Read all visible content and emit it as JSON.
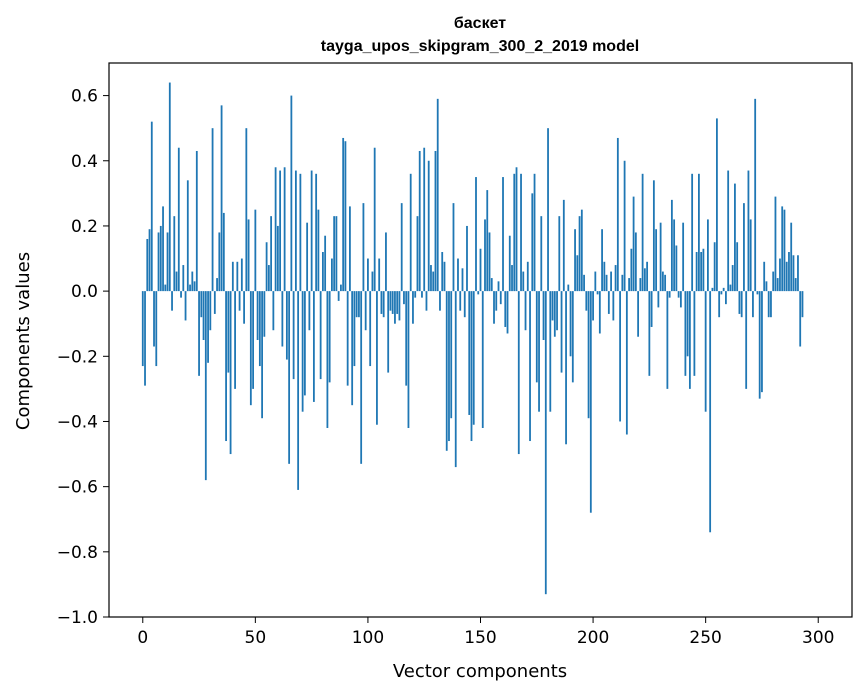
{
  "chart_data": {
    "type": "bar",
    "title": "баскет",
    "subtitle": "tayga_upos_skipgram_300_2_2019 model",
    "xlabel": "Vector components",
    "ylabel": "Components values",
    "xlim": [
      -15,
      315
    ],
    "ylim": [
      -1.0,
      0.7
    ],
    "x_ticks": [
      0,
      50,
      100,
      150,
      200,
      250,
      300
    ],
    "x_tick_labels": [
      "0",
      "50",
      "100",
      "150",
      "200",
      "250",
      "300"
    ],
    "y_ticks": [
      -1.0,
      -0.8,
      -0.6,
      -0.4,
      -0.2,
      0.0,
      0.2,
      0.4,
      0.6
    ],
    "y_tick_labels": [
      "−1.0",
      "−0.8",
      "−0.6",
      "−0.4",
      "−0.2",
      "0.0",
      "0.2",
      "0.4",
      "0.6"
    ],
    "color": "#1f77b4",
    "grid": false,
    "values": [
      -0.23,
      -0.29,
      0.16,
      0.19,
      0.52,
      -0.17,
      -0.23,
      0.18,
      0.2,
      0.26,
      0.02,
      0.18,
      0.64,
      -0.06,
      0.23,
      0.06,
      0.44,
      -0.02,
      0.08,
      -0.09,
      0.34,
      0.02,
      0.06,
      0.03,
      0.43,
      -0.26,
      -0.08,
      -0.15,
      -0.58,
      -0.22,
      -0.12,
      0.5,
      -0.07,
      0.04,
      0.18,
      0.57,
      0.24,
      -0.46,
      -0.25,
      -0.5,
      0.09,
      -0.3,
      0.09,
      -0.06,
      0.1,
      -0.1,
      0.5,
      0.22,
      -0.35,
      -0.3,
      0.25,
      -0.15,
      -0.23,
      -0.39,
      -0.14,
      0.15,
      0.08,
      0.23,
      -0.12,
      0.38,
      0.2,
      0.37,
      -0.17,
      0.38,
      -0.21,
      -0.53,
      0.6,
      -0.27,
      0.37,
      -0.61,
      0.36,
      -0.37,
      -0.32,
      0.21,
      -0.12,
      0.37,
      -0.34,
      0.36,
      0.25,
      -0.27,
      0.12,
      0.17,
      -0.42,
      -0.28,
      0.1,
      0.23,
      0.23,
      -0.03,
      0.02,
      0.47,
      0.46,
      -0.29,
      0.26,
      -0.35,
      -0.23,
      -0.08,
      -0.08,
      -0.53,
      0.27,
      -0.12,
      0.1,
      -0.23,
      0.06,
      0.44,
      -0.41,
      0.1,
      -0.07,
      -0.08,
      0.18,
      -0.25,
      -0.06,
      -0.07,
      -0.1,
      -0.07,
      -0.09,
      0.27,
      -0.04,
      -0.29,
      -0.42,
      0.36,
      -0.1,
      -0.02,
      0.23,
      0.43,
      -0.02,
      0.44,
      -0.06,
      0.4,
      0.08,
      0.06,
      0.43,
      0.59,
      -0.06,
      0.12,
      0.09,
      -0.49,
      -0.46,
      -0.39,
      0.27,
      -0.54,
      0.1,
      -0.06,
      0.07,
      -0.08,
      0.2,
      -0.38,
      -0.46,
      -0.41,
      0.35,
      -0.01,
      0.13,
      -0.42,
      0.22,
      0.31,
      0.18,
      0.04,
      -0.1,
      -0.06,
      0.03,
      -0.04,
      0.35,
      -0.11,
      -0.13,
      0.17,
      0.08,
      0.36,
      0.38,
      -0.5,
      0.36,
      0.06,
      -0.12,
      0.09,
      -0.46,
      0.3,
      0.36,
      -0.28,
      -0.37,
      0.23,
      -0.15,
      -0.93,
      0.5,
      -0.37,
      -0.09,
      -0.14,
      -0.12,
      0.23,
      -0.25,
      0.28,
      -0.47,
      0.02,
      -0.2,
      -0.28,
      0.19,
      0.11,
      0.23,
      0.25,
      0.05,
      -0.06,
      -0.39,
      -0.68,
      -0.09,
      0.06,
      -0.01,
      -0.13,
      0.19,
      0.09,
      0.05,
      -0.07,
      0.06,
      -0.09,
      0.08,
      0.47,
      -0.4,
      0.05,
      0.4,
      -0.44,
      0.04,
      0.13,
      0.29,
      0.18,
      -0.14,
      0.04,
      0.36,
      0.07,
      0.09,
      -0.26,
      -0.11,
      0.34,
      0.19,
      -0.05,
      0.21,
      0.06,
      0.05,
      -0.3,
      -0.02,
      0.28,
      0.22,
      0.14,
      -0.02,
      -0.05,
      0.21,
      -0.26,
      -0.2,
      -0.3,
      0.36,
      -0.26,
      0.12,
      0.36,
      0.12,
      0.13,
      -0.37,
      0.22,
      -0.74,
      0.01,
      0.15,
      0.53,
      -0.08,
      -0.01,
      0.01,
      -0.04,
      0.37,
      0.02,
      0.08,
      0.33,
      0.15,
      -0.07,
      -0.08,
      0.27,
      -0.3,
      0.37,
      0.22,
      -0.08,
      0.59,
      -0.01,
      -0.33,
      -0.31,
      0.09,
      0.03,
      -0.08,
      -0.08,
      0.06,
      0.29,
      0.04,
      0.1,
      0.26,
      0.25,
      0.09,
      0.12,
      0.21,
      0.11,
      0.04,
      0.11,
      -0.17,
      -0.08
    ]
  }
}
